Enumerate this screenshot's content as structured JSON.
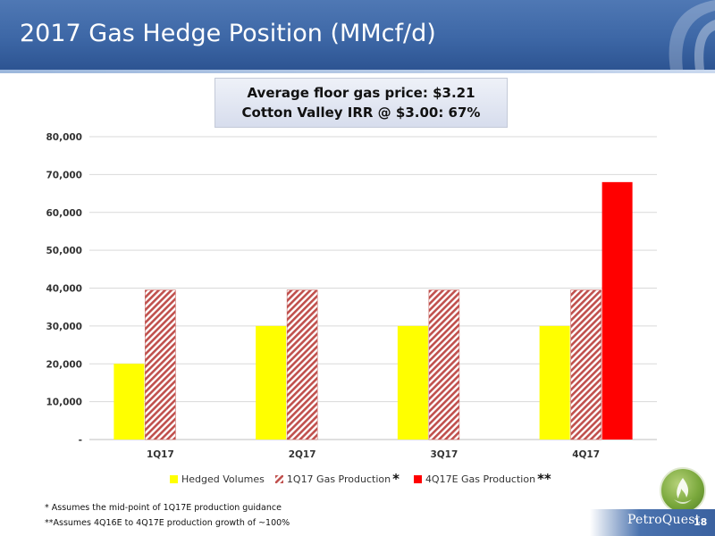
{
  "slide": {
    "title": "2017 Gas Hedge Position (MMcf/d)",
    "callout_line1": "Average floor gas price: $3.21",
    "callout_line2": "Cotton Valley IRR @ $3.00: 67%",
    "footnote1": "* Assumes the mid-point of 1Q17E production guidance",
    "footnote2": "**Assumes 4Q16E to 4Q17E production growth of ~100%",
    "brand": "PetroQuest",
    "page_number": "18"
  },
  "legend": {
    "marker1": "*",
    "marker2": "**"
  },
  "chart_data": {
    "type": "bar",
    "categories": [
      "1Q17",
      "2Q17",
      "3Q17",
      "4Q17"
    ],
    "series": [
      {
        "name": "Hedged Volumes",
        "values": [
          20000,
          30000,
          30000,
          30000
        ],
        "color": "#ffff00",
        "pattern": "solid"
      },
      {
        "name": "1Q17 Gas Production",
        "values": [
          39500,
          39500,
          39500,
          39500
        ],
        "color": "#c0504d",
        "pattern": "diagonal-hatch"
      },
      {
        "name": "4Q17E Gas Production",
        "values": [
          null,
          null,
          null,
          68000
        ],
        "color": "#ff0000",
        "pattern": "solid"
      }
    ],
    "ylim": [
      0,
      80000
    ],
    "yticks": [
      0,
      10000,
      20000,
      30000,
      40000,
      50000,
      60000,
      70000,
      80000
    ],
    "ytick_labels": [
      "-",
      "10,000",
      "20,000",
      "30,000",
      "40,000",
      "50,000",
      "60,000",
      "70,000",
      "80,000"
    ],
    "grid": true,
    "legend_position": "bottom"
  }
}
